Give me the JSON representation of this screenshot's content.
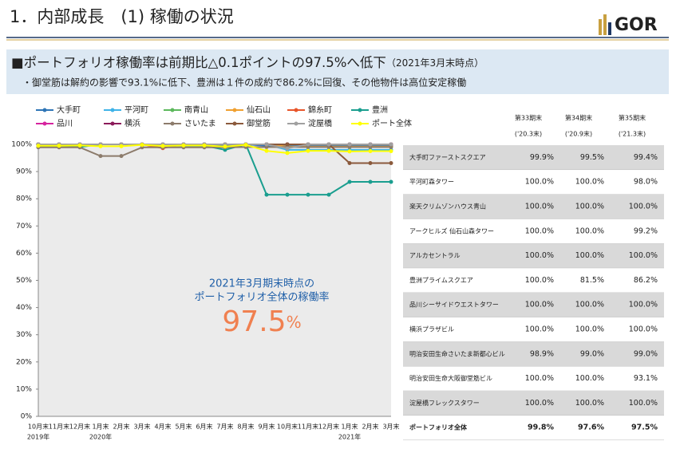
{
  "header": {
    "title": "1．内部成長　(1) 稼働の状況",
    "logo": "GOR"
  },
  "headline": {
    "main": "■ポートフォリオ稼働率は前期比△0.1ポイントの97.5%へ低下",
    "note": "（2021年3月末時点）",
    "detail": "・御堂筋は解約の影響で93.1%に低下、豊洲は１件の成約で86.2%に回復、その他物件は高位安定稼働"
  },
  "chart_data": {
    "type": "line",
    "categories": [
      "10月末",
      "11月末",
      "12月末",
      "1月末",
      "2月末",
      "3月末",
      "4月末",
      "5月末",
      "6月末",
      "7月末",
      "8月末",
      "9月末",
      "10月末",
      "11月末",
      "12月末",
      "1月末",
      "2月末",
      "3月末"
    ],
    "category_groups": [
      "2019年",
      null,
      null,
      "2020年",
      null,
      null,
      null,
      null,
      null,
      null,
      null,
      null,
      null,
      null,
      null,
      "2021年",
      null,
      null
    ],
    "ylim": [
      0,
      100
    ],
    "yticks": [
      {
        "value": 0,
        "label": "0%"
      },
      {
        "value": 10,
        "label": "10%"
      },
      {
        "value": 20,
        "label": "20%"
      },
      {
        "value": 30,
        "label": "30%"
      },
      {
        "value": 40,
        "label": "40%"
      },
      {
        "value": 50,
        "label": "50%"
      },
      {
        "value": 60,
        "label": "60%"
      },
      {
        "value": 70,
        "label": "70%"
      },
      {
        "value": 80,
        "label": "80%"
      },
      {
        "value": 90,
        "label": "90%"
      },
      {
        "value": 100,
        "label": "100%"
      }
    ],
    "background": "#ebebeb",
    "annotation": {
      "line1": "2021年3月期末時点の",
      "line2": "ポートフォリオ全体の稼働率",
      "value": "97.5",
      "unit": "%"
    },
    "series": [
      {
        "name": "大手町",
        "color": "#2e75b6",
        "values": [
          100,
          100,
          100,
          100,
          100,
          99.9,
          99.7,
          99.8,
          99.8,
          99.8,
          100,
          99.5,
          99.5,
          99.5,
          99.5,
          99.4,
          99.4,
          99.4
        ]
      },
      {
        "name": "平河町",
        "color": "#3fb3e8",
        "values": [
          100,
          100,
          100,
          100,
          100,
          100,
          100,
          100,
          100,
          100,
          100,
          100,
          98,
          98,
          98,
          98,
          98,
          98
        ]
      },
      {
        "name": "南青山",
        "color": "#5cb85c",
        "values": [
          100,
          100,
          100,
          100,
          100,
          100,
          100,
          100,
          100,
          100,
          100,
          100,
          100,
          100,
          100,
          100,
          100,
          100
        ]
      },
      {
        "name": "仙石山",
        "color": "#f0a030",
        "values": [
          100,
          100,
          100,
          100,
          100,
          100,
          100,
          100,
          100,
          100,
          100,
          100,
          99.2,
          99.2,
          99.2,
          99.2,
          99.2,
          99.2
        ]
      },
      {
        "name": "錦糸町",
        "color": "#e8552a",
        "values": [
          100,
          100,
          100,
          100,
          100,
          100,
          98.6,
          100,
          100,
          100,
          100,
          100,
          100,
          100,
          100,
          100,
          100,
          100
        ]
      },
      {
        "name": "豊洲",
        "color": "#1a9e8f",
        "values": [
          99,
          99,
          99,
          100,
          100,
          100,
          99.5,
          99.5,
          99.5,
          98,
          100,
          81.5,
          81.5,
          81.5,
          81.5,
          86.2,
          86.2,
          86.2
        ]
      },
      {
        "name": "品川",
        "color": "#d6249f",
        "values": [
          100,
          100,
          100,
          100,
          100,
          100,
          100,
          100,
          100,
          100,
          100,
          100,
          100,
          100,
          100,
          100,
          100,
          100
        ]
      },
      {
        "name": "横浜",
        "color": "#8b1a5a",
        "values": [
          100,
          100,
          100,
          100,
          100,
          100,
          100,
          100,
          100,
          100,
          100,
          100,
          100,
          100,
          100,
          100,
          100,
          100
        ]
      },
      {
        "name": "さいたま",
        "color": "#8c7b6b",
        "values": [
          98.9,
          98.9,
          98.9,
          95.7,
          95.7,
          98.9,
          98.9,
          98.9,
          98.9,
          98.9,
          99,
          99,
          99,
          99,
          99,
          99,
          99,
          99
        ]
      },
      {
        "name": "御堂筋",
        "color": "#8b5a3c",
        "values": [
          100,
          100,
          100,
          100,
          100,
          100,
          100,
          100,
          100,
          100,
          100,
          100,
          100,
          100,
          100,
          93.1,
          93.1,
          93.1
        ]
      },
      {
        "name": "淀屋橋",
        "color": "#a0a0a0",
        "values": [
          100,
          100,
          100,
          100,
          100,
          100,
          100,
          100,
          100,
          100,
          100,
          100,
          98.5,
          100,
          100,
          100,
          100,
          100
        ]
      },
      {
        "name": "ポート全体",
        "color": "#ffff00",
        "values": [
          99.5,
          99.5,
          99.6,
          99.3,
          99.3,
          99.8,
          99.4,
          99.6,
          99.6,
          99.2,
          99.8,
          97.6,
          96.8,
          97.6,
          97.6,
          97.4,
          97.5,
          97.5
        ]
      }
    ]
  },
  "table": {
    "columns": [
      [
        "第33期末",
        "('20.3末)"
      ],
      [
        "第34期末",
        "('20.9末)"
      ],
      [
        "第35期末",
        "('21.3末)"
      ]
    ],
    "rows": [
      [
        "大手町ファーストスクエア",
        "99.9%",
        "99.5%",
        "99.4%"
      ],
      [
        "平河町森タワー",
        "100.0%",
        "100.0%",
        "98.0%"
      ],
      [
        "楽天クリムゾンハウス青山",
        "100.0%",
        "100.0%",
        "100.0%"
      ],
      [
        "アークヒルズ 仙石山森タワー",
        "100.0%",
        "100.0%",
        "99.2%"
      ],
      [
        "アルカセントラル",
        "100.0%",
        "100.0%",
        "100.0%"
      ],
      [
        "豊洲プライムスクエア",
        "100.0%",
        "81.5%",
        "86.2%"
      ],
      [
        "品川シーサイドウエストタワー",
        "100.0%",
        "100.0%",
        "100.0%"
      ],
      [
        "横浜プラザビル",
        "100.0%",
        "100.0%",
        "100.0%"
      ],
      [
        "明治安田生命さいたま新都心ビル",
        "98.9%",
        "99.0%",
        "99.0%"
      ],
      [
        "明治安田生命大阪御堂筋ビル",
        "100.0%",
        "100.0%",
        "93.1%"
      ],
      [
        "淀屋橋フレックスタワー",
        "100.0%",
        "100.0%",
        "100.0%"
      ],
      [
        "ポートフォリオ全体",
        "99.8%",
        "97.6%",
        "97.5%"
      ]
    ]
  }
}
